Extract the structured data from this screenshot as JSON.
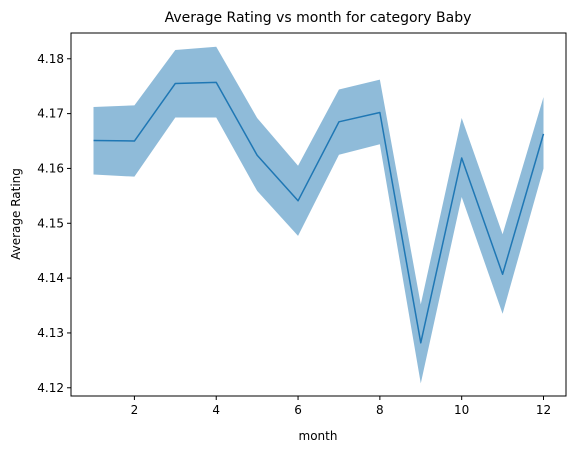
{
  "chart_data": {
    "type": "line",
    "title": "Average Rating vs month for category Baby",
    "xlabel": "month",
    "ylabel": "Average Rating",
    "xlim": [
      0.45,
      12.55
    ],
    "ylim": [
      4.1185,
      4.1847
    ],
    "xticks": [
      2,
      4,
      6,
      8,
      10,
      12
    ],
    "yticks": [
      4.12,
      4.13,
      4.14,
      4.15,
      4.16,
      4.17,
      4.18
    ],
    "grid": false,
    "series": [
      {
        "color": "#1f77b4",
        "band_color": "#1f77b4",
        "x": [
          1,
          2,
          3,
          4,
          5,
          6,
          7,
          8,
          9,
          10,
          11,
          12
        ],
        "values": [
          4.1651,
          4.165,
          4.1755,
          4.1757,
          4.1624,
          4.1541,
          4.1685,
          4.1702,
          4.1282,
          4.1619,
          4.1407,
          4.1663
        ],
        "upper": [
          4.1712,
          4.1715,
          4.1816,
          4.1822,
          4.1692,
          4.1605,
          4.1744,
          4.1762,
          4.1352,
          4.1692,
          4.148,
          4.173
        ],
        "lower": [
          4.1589,
          4.1585,
          4.1693,
          4.1693,
          4.1559,
          4.1477,
          4.1625,
          4.1644,
          4.1208,
          4.1548,
          4.1335,
          4.16
        ]
      }
    ]
  }
}
